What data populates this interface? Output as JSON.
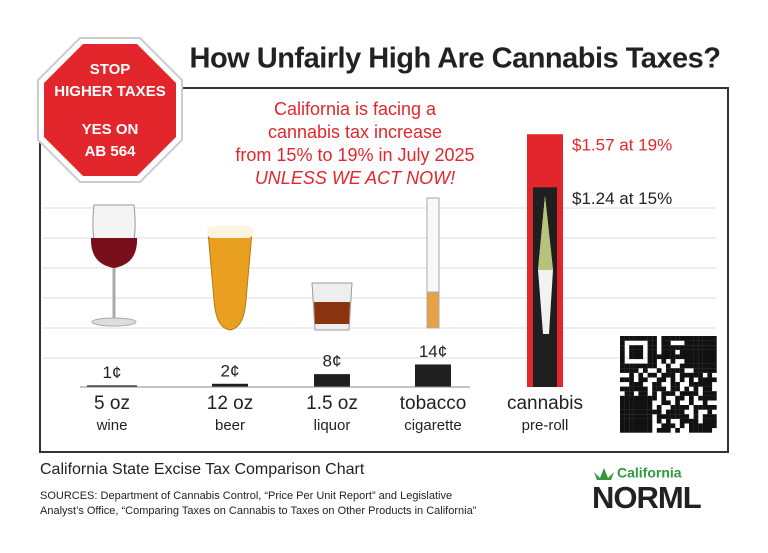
{
  "stop_sign": {
    "lines": [
      "STOP",
      "HIGHER TAXES",
      "YES ON",
      "AB 564"
    ]
  },
  "chart_data": {
    "type": "bar",
    "title": "How Unfairly High Are Cannabis Taxes?",
    "annotation": {
      "lines": [
        "California is facing a",
        "cannabis tax increase",
        "from 15% to 19% in July 2025",
        "UNLESS WE ACT NOW!"
      ]
    },
    "categories": [
      "5 oz",
      "12 oz",
      "1.5 oz",
      "tobacco",
      "cannabis"
    ],
    "category_details": [
      "wine",
      "beer",
      "liquor",
      "cigarette",
      "pre-roll"
    ],
    "values": [
      0.01,
      0.02,
      0.08,
      0.14,
      1.24
    ],
    "value_labels": [
      "1¢",
      "2¢",
      "8¢",
      "14¢",
      "$1.24 at 15%"
    ],
    "color": "#1f1f1f",
    "proposed": {
      "values": [
        null,
        null,
        null,
        null,
        1.57
      ],
      "value_labels": [
        null,
        null,
        null,
        null,
        "$1.57 at 19%"
      ],
      "color": "#e3262b"
    },
    "caption": "California State Excise Tax Comparison Chart",
    "sources": [
      "SOURCES: Department of Cannabis Control, “Price Per Unit Report” and Legislative",
      "Analyst’s Office, “Comparing Taxes on Cannabis to Taxes on Other Products in California”"
    ]
  },
  "brand": {
    "state": "California",
    "name": "NORML"
  }
}
